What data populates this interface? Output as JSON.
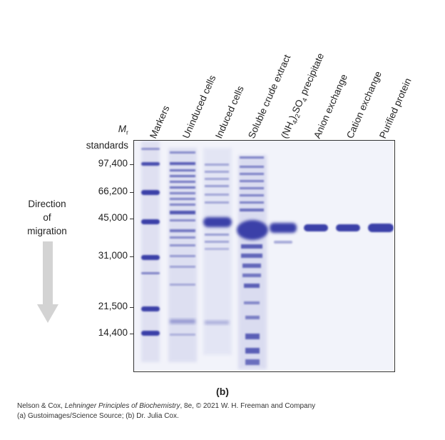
{
  "lanes": [
    "Markers",
    "Uninduced cells",
    "Induced cells",
    "Soluble crude extract",
    "precipitate",
    "Anion exchange",
    "Cation exchange",
    "Purified protein"
  ],
  "ammonium_sulfate": {
    "open": "(NH",
    "sub1": "4",
    "mid": ")",
    "sub2": "2",
    "so": "SO",
    "sub3": "4"
  },
  "mr_label": {
    "m": "M",
    "sub": "r",
    "standards": "standards"
  },
  "standards": [
    "97,400",
    "66,200",
    "45,000",
    "31,000",
    "21,500",
    "14,400"
  ],
  "direction": {
    "line1": "Direction",
    "line2": "of",
    "line3": "migration"
  },
  "panel_label": "(b)",
  "caption": {
    "line1_pre": "Nelson & Cox, ",
    "line1_italic": "Lehninger Principles of Biochemistry",
    "line1_post": ", 8e, © 2021 W. H. Freeman and Company",
    "line2": "(a) Gustoimages/Science Source; (b) Dr. Julia Cox."
  },
  "colors": {
    "gel_background": "#f6f6fa",
    "band": "#3b3fa8",
    "arrow": "#d3d3d3"
  }
}
